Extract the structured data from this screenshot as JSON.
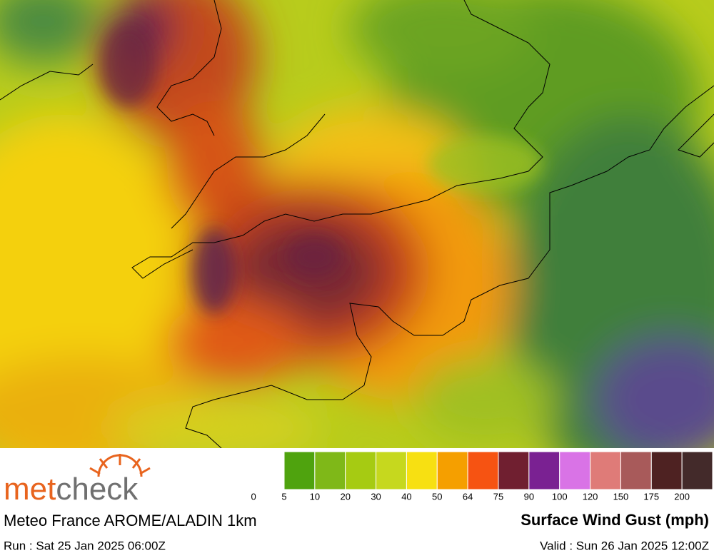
{
  "logo": {
    "parts": [
      "met",
      "check"
    ]
  },
  "model": "Meteo France AROME/ALADIN 1km",
  "title": "Surface Wind Gust (mph)",
  "run": "Run : Sat 25 Jan 2025 06:00Z",
  "valid": "Valid : Sun 26 Jan 2025 12:00Z",
  "legend": {
    "labels": [
      0,
      5,
      10,
      20,
      30,
      40,
      50,
      64,
      75,
      90,
      100,
      120,
      150,
      175,
      200
    ],
    "colors": [
      "#4fa30e",
      "#7fb818",
      "#a6cb12",
      "#c6d81e",
      "#f7e012",
      "#f59f00",
      "#f65312",
      "#701f30",
      "#7a2192",
      "#d973e6",
      "#df7b78",
      "#a85a5a",
      "#4e2222",
      "#432a2a"
    ]
  }
}
